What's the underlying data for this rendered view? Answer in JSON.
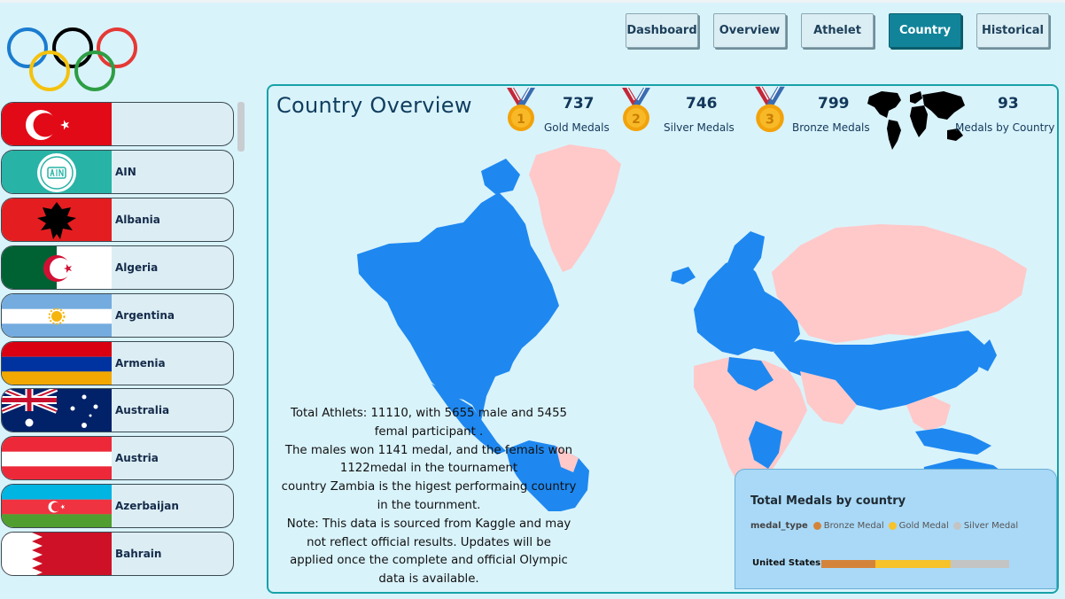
{
  "nav": {
    "items": [
      {
        "label": "Dashboard",
        "active": false
      },
      {
        "label": "Overview",
        "active": false
      },
      {
        "label": "Athelet",
        "active": false
      },
      {
        "label": "Country",
        "active": true
      },
      {
        "label": "Historical",
        "active": false
      }
    ]
  },
  "logo": {
    "icon": "olympic-rings-icon",
    "colors": [
      "#1a7ccf",
      "#000000",
      "#e53935",
      "#f4c20d",
      "#2e9e44"
    ]
  },
  "countries": [
    {
      "name": "",
      "flag": "turkey-flag-icon"
    },
    {
      "name": "AIN",
      "flag": "ain-emblem-icon"
    },
    {
      "name": "Albania",
      "flag": "albania-flag-icon"
    },
    {
      "name": "Algeria",
      "flag": "algeria-flag-icon"
    },
    {
      "name": "Argentina",
      "flag": "argentina-flag-icon"
    },
    {
      "name": "Armenia",
      "flag": "armenia-flag-icon"
    },
    {
      "name": "Australia",
      "flag": "australia-flag-icon"
    },
    {
      "name": "Austria",
      "flag": "austria-flag-icon"
    },
    {
      "name": "Azerbaijan",
      "flag": "azerbaijan-flag-icon"
    },
    {
      "name": "Bahrain",
      "flag": "bahrain-flag-icon"
    }
  ],
  "panel": {
    "title": "Country Overview",
    "kpis": {
      "gold": {
        "value": "737",
        "label": "Gold Medals",
        "icon": "gold-medal-icon"
      },
      "silver": {
        "value": "746",
        "label": "Silver Medals",
        "icon": "silver-medal-icon"
      },
      "bronze": {
        "value": "799",
        "label": "Bronze Medals",
        "icon": "bronze-medal-icon"
      },
      "countries": {
        "value": "93",
        "label": "Medals by Country",
        "icon": "world-map-icon"
      }
    },
    "map": {
      "icon": "world-map",
      "medal_color": "#1e88f0",
      "no_medal_color": "#ffc9c9"
    },
    "note_lines": [
      "Total Athlets: 11110, with 5655 male and 5455",
      "femal participant .",
      "The males won 1141 medal, and the femals won",
      "1122medal in the tournament",
      "country Zambia is the higest performaing country",
      "in the tournment.",
      "Note: This data is sourced from Kaggle and may",
      "not reflect official results. Updates will be",
      "applied once the complete and official Olympic",
      "data is available."
    ]
  },
  "legend_card": {
    "title": "Total Medals by country",
    "legend_key": "medal_type",
    "items": [
      {
        "label": "Bronze Medal",
        "color": "#d4843a"
      },
      {
        "label": "Gold Medal",
        "color": "#f7c22a"
      },
      {
        "label": "Silver Medal",
        "color": "#c4c4c4"
      }
    ],
    "row_label": "United States",
    "shares": [
      0.29,
      0.4,
      0.31
    ]
  }
}
